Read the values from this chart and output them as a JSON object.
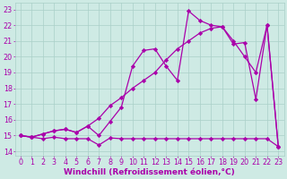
{
  "bg_color": "#ceeae4",
  "grid_color": "#aacfc8",
  "line_color": "#aa00aa",
  "marker": "D",
  "markersize": 2.2,
  "linewidth": 0.9,
  "xlabel": "Windchill (Refroidissement éolien,°C)",
  "xlabel_fontsize": 6.5,
  "tick_fontsize": 5.8,
  "xlim": [
    -0.5,
    23.5
  ],
  "ylim": [
    13.7,
    23.4
  ],
  "yticks": [
    14,
    15,
    16,
    17,
    18,
    19,
    20,
    21,
    22,
    23
  ],
  "xticks": [
    0,
    1,
    2,
    3,
    4,
    5,
    6,
    7,
    8,
    9,
    10,
    11,
    12,
    13,
    14,
    15,
    16,
    17,
    18,
    19,
    20,
    21,
    22,
    23
  ],
  "line1_x": [
    0,
    1,
    2,
    3,
    4,
    5,
    6,
    7,
    8,
    9,
    10,
    11,
    12,
    13,
    14,
    15,
    16,
    17,
    18,
    19,
    20,
    21,
    22,
    23
  ],
  "line1_y": [
    15.0,
    14.9,
    14.8,
    14.9,
    14.8,
    14.8,
    14.8,
    14.4,
    14.85,
    14.8,
    14.8,
    14.8,
    14.8,
    14.8,
    14.8,
    14.8,
    14.8,
    14.8,
    14.8,
    14.8,
    14.8,
    14.8,
    14.8,
    14.3
  ],
  "line2_x": [
    0,
    1,
    2,
    3,
    4,
    5,
    6,
    7,
    8,
    9,
    10,
    11,
    12,
    13,
    14,
    15,
    16,
    17,
    18,
    19,
    20,
    21,
    22,
    23
  ],
  "line2_y": [
    15.0,
    14.9,
    15.1,
    15.3,
    15.4,
    15.2,
    15.6,
    16.1,
    16.9,
    17.4,
    18.0,
    18.5,
    19.0,
    19.8,
    20.5,
    21.0,
    21.5,
    21.8,
    21.9,
    21.0,
    20.0,
    19.0,
    22.0,
    14.3
  ],
  "line3_x": [
    0,
    1,
    2,
    3,
    4,
    5,
    6,
    7,
    8,
    9,
    10,
    11,
    12,
    13,
    14,
    15,
    16,
    17,
    18,
    19,
    20,
    21,
    22,
    23
  ],
  "line3_y": [
    15.0,
    14.9,
    15.1,
    15.3,
    15.4,
    15.2,
    15.6,
    15.0,
    15.9,
    16.8,
    19.4,
    20.4,
    20.5,
    19.4,
    18.5,
    22.9,
    22.3,
    22.0,
    21.9,
    20.8,
    20.9,
    17.3,
    22.0,
    14.3
  ]
}
